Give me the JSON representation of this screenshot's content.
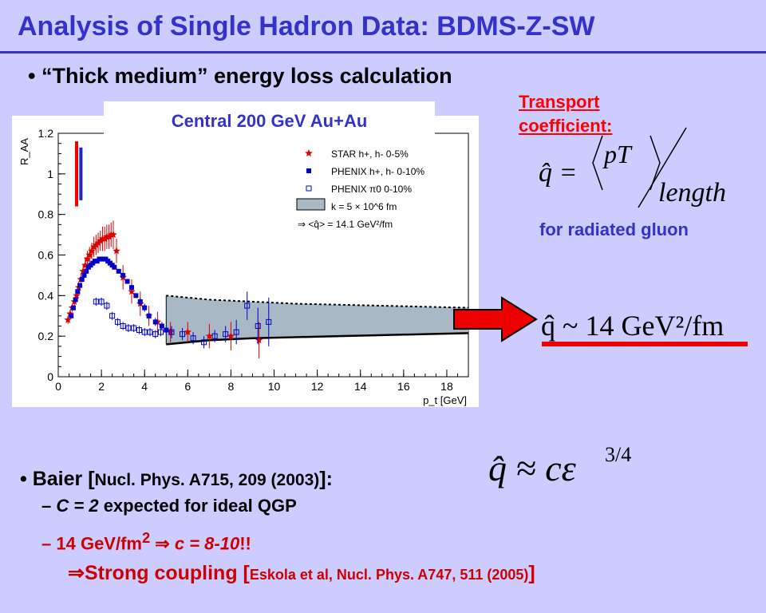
{
  "title": "Analysis of Single Hadron Data: BDMS-Z-SW",
  "bullet_thick": "• “Thick medium” energy loss calculation",
  "chart_label": "Central 200 GeV Au+Au",
  "transport_line1": "Transport",
  "transport_line2": "coefficient:",
  "for_radiated_gluon": "for radiated gluon",
  "equations": {
    "qhat_def_lhs": "q̂ =",
    "qhat_def_num": "pT",
    "qhat_def_den": "length",
    "qhat_value": "q̂ ~ 14 GeV²/fm",
    "qhat_scaling": "q̂ ≈ cε^(3/4)"
  },
  "baier": {
    "bullet": "•",
    "name": "Baier [",
    "ref": "Nucl. Phys. A715, 209 (2003)",
    "close": "]:"
  },
  "c_line": {
    "dash": "–",
    "italic": "C = 2",
    "rest": " expected for ideal QGP"
  },
  "gev_line": {
    "dash": "–",
    "lead": "14 GeV/fm",
    "sup": "2",
    "implies": " ⇒ ",
    "italic": "c = 8-10",
    "excl": "!!"
  },
  "strong_line": {
    "arrow": "⇒",
    "text": "Strong coupling [",
    "ref": "Eskola et al, Nucl. Phys. A747, 511 (2005)",
    "close": "]"
  },
  "colors": {
    "title": "#3333cc",
    "star": "#dd0000",
    "phenix_h": "#0000cc",
    "band": "#a8b8c4",
    "arrow": "#ee0000"
  },
  "chart_data": {
    "type": "scatter",
    "xlabel": "p_t [GeV]",
    "ylabel": "R_AA",
    "xlim": [
      0,
      19
    ],
    "ylim": [
      0,
      1.2
    ],
    "xticks": [
      "0",
      "2",
      "4",
      "6",
      "8",
      "10",
      "12",
      "14",
      "16",
      "18"
    ],
    "yticks": [
      "0",
      "0.2",
      "0.4",
      "0.6",
      "0.8",
      "1",
      "1.2"
    ],
    "legend": [
      "STAR h+, h- 0-5%",
      "PHENIX h+, h- 0-10%",
      "PHENIX π0 0-10%",
      "k = 5 × 10^6 fm",
      "⇒ <q̂> = 14.1 GeV²/fm"
    ],
    "series": [
      {
        "name": "STAR h+, h- 0-5%",
        "marker": "star",
        "x": [
          0.45,
          0.55,
          0.65,
          0.75,
          0.85,
          0.95,
          1.05,
          1.15,
          1.25,
          1.35,
          1.45,
          1.55,
          1.65,
          1.75,
          1.85,
          1.95,
          2.05,
          2.15,
          2.25,
          2.35,
          2.45,
          2.55,
          2.7,
          3.0,
          3.4,
          3.8,
          4.2,
          4.6,
          5.2,
          6.0,
          7.0,
          8.0,
          9.3
        ],
        "y": [
          0.28,
          0.31,
          0.34,
          0.37,
          0.4,
          0.44,
          0.48,
          0.52,
          0.55,
          0.58,
          0.6,
          0.62,
          0.64,
          0.65,
          0.66,
          0.67,
          0.68,
          0.68,
          0.69,
          0.69,
          0.7,
          0.7,
          0.62,
          0.49,
          0.42,
          0.36,
          0.3,
          0.27,
          0.22,
          0.22,
          0.2,
          0.2,
          0.18
        ],
        "err": [
          0.02,
          0.02,
          0.02,
          0.02,
          0.03,
          0.03,
          0.03,
          0.03,
          0.04,
          0.04,
          0.04,
          0.04,
          0.05,
          0.05,
          0.05,
          0.05,
          0.06,
          0.06,
          0.06,
          0.06,
          0.06,
          0.07,
          0.06,
          0.06,
          0.06,
          0.06,
          0.05,
          0.05,
          0.05,
          0.05,
          0.06,
          0.07,
          0.09
        ]
      },
      {
        "name": "PHENIX h+, h- 0-10%",
        "marker": "square",
        "x": [
          0.6,
          0.7,
          0.8,
          0.9,
          1.0,
          1.1,
          1.2,
          1.3,
          1.4,
          1.5,
          1.6,
          1.7,
          1.8,
          1.9,
          2.0,
          2.1,
          2.2,
          2.3,
          2.4,
          2.5,
          2.6,
          2.8,
          3.0,
          3.2,
          3.4,
          3.6,
          3.8,
          4.0,
          4.2,
          4.5,
          4.8,
          5.0
        ],
        "y": [
          0.3,
          0.34,
          0.38,
          0.42,
          0.45,
          0.48,
          0.5,
          0.52,
          0.54,
          0.55,
          0.56,
          0.57,
          0.57,
          0.58,
          0.58,
          0.58,
          0.58,
          0.57,
          0.56,
          0.55,
          0.54,
          0.52,
          0.5,
          0.47,
          0.44,
          0.4,
          0.37,
          0.34,
          0.3,
          0.27,
          0.25,
          0.23
        ],
        "err": [
          0.01,
          0.01,
          0.01,
          0.01,
          0.01,
          0.01,
          0.01,
          0.01,
          0.01,
          0.01,
          0.01,
          0.01,
          0.01,
          0.01,
          0.01,
          0.01,
          0.01,
          0.01,
          0.01,
          0.01,
          0.01,
          0.01,
          0.01,
          0.01,
          0.01,
          0.01,
          0.02,
          0.02,
          0.02,
          0.02,
          0.02,
          0.02
        ]
      },
      {
        "name": "PHENIX π0 0-10%",
        "marker": "open-square",
        "x": [
          1.75,
          2.0,
          2.25,
          2.5,
          2.75,
          3.0,
          3.25,
          3.5,
          3.75,
          4.0,
          4.25,
          4.5,
          4.75,
          5.25,
          5.75,
          6.25,
          6.75,
          7.25,
          7.75,
          8.25,
          8.75,
          9.25,
          9.75
        ],
        "y": [
          0.37,
          0.37,
          0.35,
          0.3,
          0.27,
          0.25,
          0.24,
          0.24,
          0.23,
          0.22,
          0.22,
          0.21,
          0.22,
          0.22,
          0.21,
          0.19,
          0.17,
          0.2,
          0.21,
          0.22,
          0.35,
          0.25,
          0.27
        ],
        "err": [
          0.02,
          0.02,
          0.02,
          0.02,
          0.02,
          0.02,
          0.02,
          0.02,
          0.02,
          0.02,
          0.02,
          0.02,
          0.02,
          0.03,
          0.03,
          0.03,
          0.03,
          0.03,
          0.04,
          0.06,
          0.07,
          0.09,
          0.12
        ]
      }
    ],
    "band": {
      "name": "k = 5 × 10^6 fm",
      "x": [
        5.0,
        7,
        9,
        11,
        13,
        15,
        17,
        19
      ],
      "upper": [
        0.4,
        0.38,
        0.37,
        0.36,
        0.355,
        0.35,
        0.345,
        0.34
      ],
      "lower": [
        0.16,
        0.18,
        0.19,
        0.195,
        0.2,
        0.205,
        0.21,
        0.215
      ]
    },
    "uncertainty_bars": [
      {
        "color": "#ee0000",
        "x": 0.85,
        "y1": 0.84,
        "y2": 1.16
      },
      {
        "color": "#2222cc",
        "x": 1.05,
        "y1": 0.87,
        "y2": 1.13
      }
    ]
  }
}
